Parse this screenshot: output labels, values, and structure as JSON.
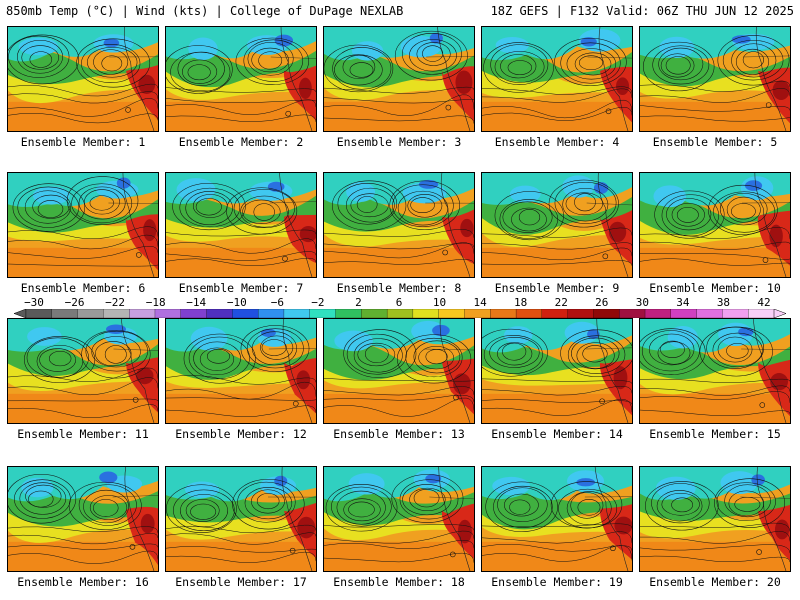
{
  "header": {
    "left_title": "850mb Temp (°C) | Wind (kts) | College of DuPage NEXLAB",
    "right_title": "18Z GEFS | F132 Valid: 06Z THU JUN 12 2025"
  },
  "panels": [
    {
      "label": "Ensemble Member: 1"
    },
    {
      "label": "Ensemble Member: 2"
    },
    {
      "label": "Ensemble Member: 3"
    },
    {
      "label": "Ensemble Member: 4"
    },
    {
      "label": "Ensemble Member: 5"
    },
    {
      "label": "Ensemble Member: 6"
    },
    {
      "label": "Ensemble Member: 7"
    },
    {
      "label": "Ensemble Member: 8"
    },
    {
      "label": "Ensemble Member: 9"
    },
    {
      "label": "Ensemble Member: 10"
    },
    {
      "label": "Ensemble Member: 11"
    },
    {
      "label": "Ensemble Member: 12"
    },
    {
      "label": "Ensemble Member: 13"
    },
    {
      "label": "Ensemble Member: 14"
    },
    {
      "label": "Ensemble Member: 15"
    },
    {
      "label": "Ensemble Member: 16"
    },
    {
      "label": "Ensemble Member: 17"
    },
    {
      "label": "Ensemble Member: 18"
    },
    {
      "label": "Ensemble Member: 19"
    },
    {
      "label": "Ensemble Member: 20"
    }
  ],
  "colorbar": {
    "tick_labels": [
      "−30",
      "−26",
      "−22",
      "−18",
      "−14",
      "−10",
      "−6",
      "−2",
      "2",
      "6",
      "10",
      "14",
      "18",
      "22",
      "26",
      "30",
      "34",
      "38",
      "42"
    ],
    "colors": [
      "#5a5a5a",
      "#7a7a7a",
      "#9a9a9a",
      "#b4b4b4",
      "#c8a0e0",
      "#b070e0",
      "#8040d0",
      "#5030c0",
      "#2050e0",
      "#3090f0",
      "#40c8f0",
      "#30e0c0",
      "#30c060",
      "#60b030",
      "#a0c020",
      "#e0e020",
      "#f8c820",
      "#f0a020",
      "#e87818",
      "#e05010",
      "#d02010",
      "#b01010",
      "#900808",
      "#a01040",
      "#c02080",
      "#d040c0",
      "#e070e0",
      "#f0a0f0",
      "#f8d0f8"
    ]
  }
}
